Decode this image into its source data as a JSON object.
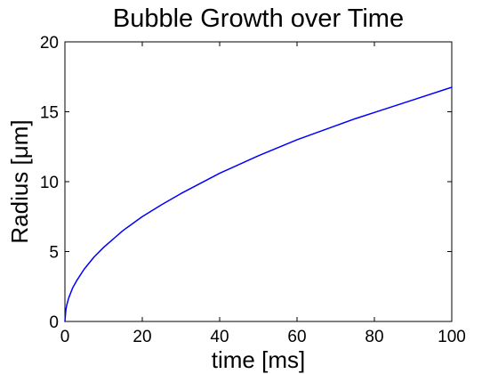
{
  "chart_data": {
    "type": "line",
    "title": "Bubble Growth over Time",
    "xlabel": "time [ms]",
    "ylabel": "Radius [μm]",
    "xlim": [
      0,
      100
    ],
    "ylim": [
      0,
      20
    ],
    "xticks": [
      0,
      20,
      40,
      60,
      80,
      100
    ],
    "yticks": [
      0,
      5,
      10,
      15,
      20
    ],
    "xtick_labels": [
      "0",
      "20",
      "40",
      "60",
      "80",
      "100"
    ],
    "ytick_labels": [
      "0",
      "5",
      "10",
      "15",
      "20"
    ],
    "grid": false,
    "legend": "none",
    "series": [
      {
        "color": "#0000ff",
        "x": [
          0,
          0.25,
          0.5,
          1,
          2,
          3,
          5,
          7.5,
          10,
          15,
          20,
          25,
          30,
          40,
          50,
          60,
          70,
          75,
          80,
          90,
          100
        ],
        "y": [
          0,
          0.85,
          1.2,
          1.7,
          2.4,
          2.9,
          3.75,
          4.6,
          5.3,
          6.5,
          7.5,
          8.35,
          9.15,
          10.6,
          11.85,
          13.0,
          14.0,
          14.5,
          14.95,
          15.85,
          16.75
        ]
      }
    ]
  }
}
